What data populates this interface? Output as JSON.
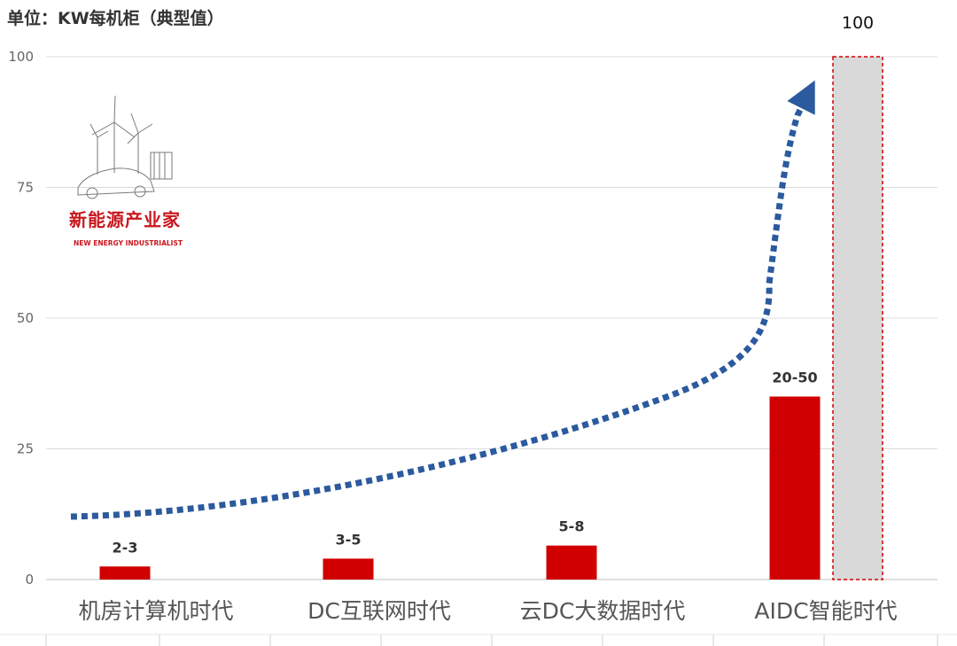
{
  "chart_data": {
    "type": "bar",
    "unit_label": "单位：KW每机柜（典型值）",
    "categories": [
      "机房计算机时代",
      "DC互联网时代",
      "云DC大数据时代",
      "AIDC智能时代"
    ],
    "series": [
      {
        "values": [
          2.5,
          4,
          6.5,
          35
        ],
        "labels": [
          "2-3",
          "3-5",
          "5-8",
          "20-50"
        ],
        "color": "#d10000"
      }
    ],
    "projection": {
      "value": 100,
      "label": "100",
      "fill": "#d9d9d9",
      "border_color": "#d10000",
      "border_style": "dashed"
    },
    "trend_arrow": {
      "color": "#2b5a9e",
      "style": "dotted"
    },
    "ylim": [
      0,
      100
    ],
    "yticks": [
      0,
      25,
      50,
      75,
      100
    ],
    "grid": true
  },
  "logo": {
    "name": "新能源产业家",
    "subtitle": "NEW ENERGY INDUSTRIALIST",
    "icon": "wind-turbine-car-icon",
    "color": "#c8161d"
  }
}
